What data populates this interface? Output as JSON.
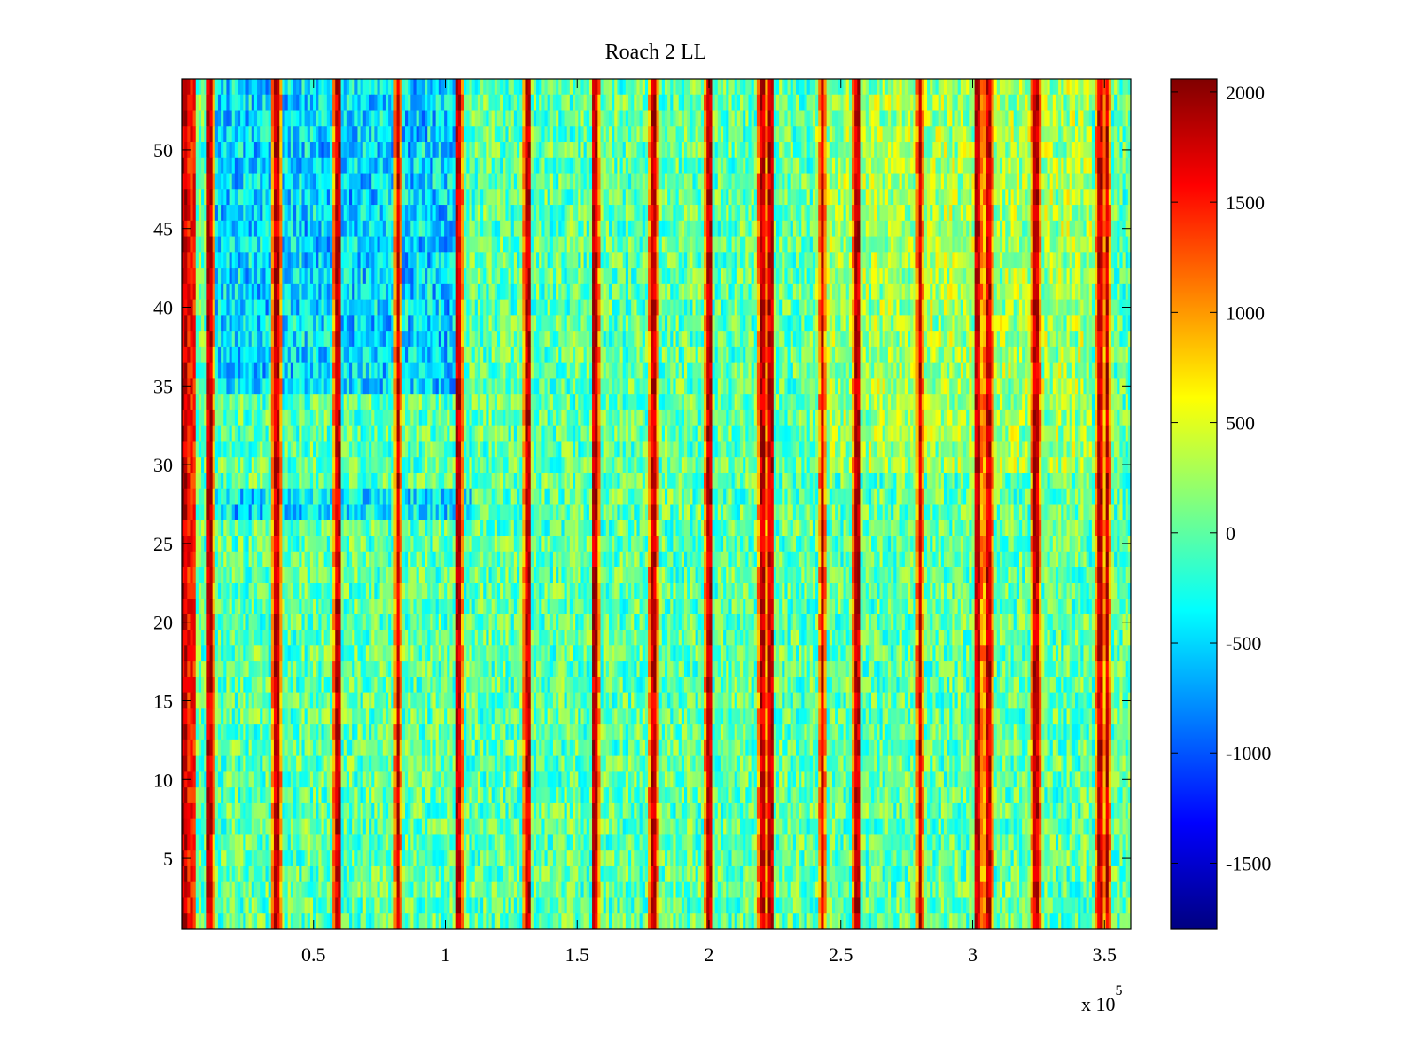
{
  "chart_data": {
    "type": "heatmap",
    "title": "Roach 2 LL",
    "xlabel": "",
    "ylabel": "",
    "x_exponent_label": "x 10",
    "x_exponent_power": "5",
    "xlim": [
      0,
      360000
    ],
    "ylim": [
      0.5,
      54.5
    ],
    "rows": 54,
    "x_ticks": [
      {
        "value": 50000,
        "label": "0.5"
      },
      {
        "value": 100000,
        "label": "1"
      },
      {
        "value": 150000,
        "label": "1.5"
      },
      {
        "value": 200000,
        "label": "2"
      },
      {
        "value": 250000,
        "label": "2.5"
      },
      {
        "value": 300000,
        "label": "3"
      },
      {
        "value": 350000,
        "label": "3.5"
      }
    ],
    "y_ticks": [
      {
        "value": 5,
        "label": "5"
      },
      {
        "value": 10,
        "label": "10"
      },
      {
        "value": 15,
        "label": "15"
      },
      {
        "value": 20,
        "label": "20"
      },
      {
        "value": 25,
        "label": "25"
      },
      {
        "value": 30,
        "label": "30"
      },
      {
        "value": 35,
        "label": "35"
      },
      {
        "value": 40,
        "label": "40"
      },
      {
        "value": 45,
        "label": "45"
      },
      {
        "value": 50,
        "label": "50"
      }
    ],
    "colormap": "jet",
    "color_limits": [
      -1800,
      2060
    ],
    "colorbar_ticks": [
      {
        "value": 2000,
        "label": "2000"
      },
      {
        "value": 1500,
        "label": "1500"
      },
      {
        "value": 1000,
        "label": "1000"
      },
      {
        "value": 500,
        "label": "500"
      },
      {
        "value": 0,
        "label": "0"
      },
      {
        "value": -500,
        "label": "-500"
      },
      {
        "value": -1000,
        "label": "-1000"
      },
      {
        "value": -1500,
        "label": "-1500"
      }
    ],
    "baseline_level": 0,
    "high_columns_x": [
      1200,
      11000,
      36000,
      59000,
      82000,
      105000,
      131000,
      157000,
      179000,
      200000,
      220000,
      223000,
      243000,
      256000,
      280000,
      302000,
      306000,
      324000,
      348000,
      351000
    ],
    "low_value_regions": [
      {
        "x_range": [
          10000,
          105000
        ],
        "y_range": [
          35,
          54
        ]
      },
      {
        "x_range": [
          10000,
          110000
        ],
        "y_range": [
          27,
          28
        ]
      }
    ],
    "high_value_regions": [
      {
        "x_range": [
          240000,
          345000
        ],
        "y_range": [
          30,
          54
        ]
      }
    ]
  }
}
